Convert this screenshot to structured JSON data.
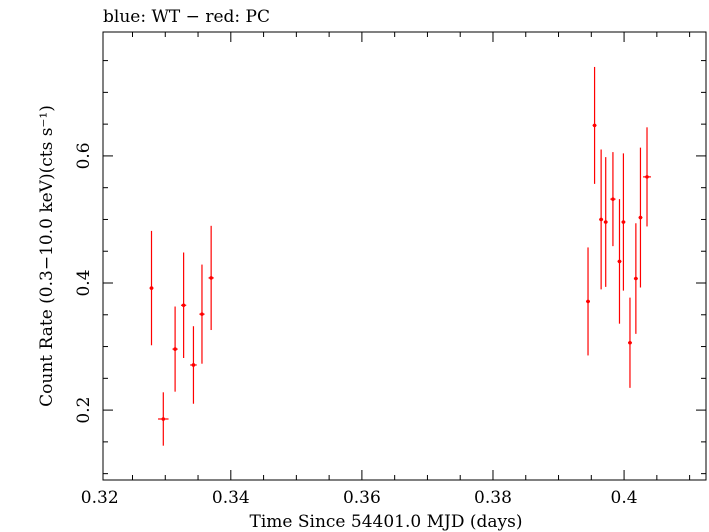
{
  "chart_data": {
    "type": "scatter",
    "title": "blue: WT − red: PC",
    "xlabel": "Time Since 54401.0 MJD (days)",
    "ylabel": "Count Rate (0.3−10.0 keV)(cts s⁻¹)",
    "xlim": [
      0.3205,
      0.4125
    ],
    "ylim": [
      0.09,
      0.795
    ],
    "xticks": [
      0.32,
      0.34,
      0.36,
      0.38,
      0.4
    ],
    "xtick_labels": [
      "0.32",
      "0.34",
      "0.36",
      "0.38",
      "0.4"
    ],
    "yticks": [
      0.2,
      0.4,
      0.6
    ],
    "ytick_labels": [
      "0.2",
      "0.4",
      "0.6"
    ],
    "grid": false,
    "series": [
      {
        "color": "#ff0000",
        "points": [
          {
            "x": 0.3279,
            "xerr": 0.0003,
            "y": 0.392,
            "yerr": 0.09
          },
          {
            "x": 0.3297,
            "xerr": 0.0008,
            "y": 0.186,
            "yerr": 0.042
          },
          {
            "x": 0.3315,
            "xerr": 0.0004,
            "y": 0.296,
            "yerr": 0.067
          },
          {
            "x": 0.3328,
            "xerr": 0.0004,
            "y": 0.365,
            "yerr": 0.083
          },
          {
            "x": 0.3343,
            "xerr": 0.0005,
            "y": 0.271,
            "yerr": 0.061
          },
          {
            "x": 0.3356,
            "xerr": 0.0004,
            "y": 0.351,
            "yerr": 0.078
          },
          {
            "x": 0.337,
            "xerr": 0.0004,
            "y": 0.408,
            "yerr": 0.082
          },
          {
            "x": 0.3945,
            "xerr": 0.0003,
            "y": 0.371,
            "yerr": 0.085
          },
          {
            "x": 0.3955,
            "xerr": 0.0003,
            "y": 0.648,
            "yerr": 0.092
          },
          {
            "x": 0.3965,
            "xerr": 0.0003,
            "y": 0.5,
            "yerr": 0.11
          },
          {
            "x": 0.3972,
            "xerr": 0.0003,
            "y": 0.496,
            "yerr": 0.102
          },
          {
            "x": 0.3983,
            "xerr": 0.0004,
            "y": 0.532,
            "yerr": 0.074
          },
          {
            "x": 0.3993,
            "xerr": 0.0003,
            "y": 0.434,
            "yerr": 0.098
          },
          {
            "x": 0.3999,
            "xerr": 0.0003,
            "y": 0.496,
            "yerr": 0.108
          },
          {
            "x": 0.4009,
            "xerr": 0.0003,
            "y": 0.306,
            "yerr": 0.071
          },
          {
            "x": 0.4018,
            "xerr": 0.0003,
            "y": 0.407,
            "yerr": 0.087
          },
          {
            "x": 0.4025,
            "xerr": 0.0003,
            "y": 0.503,
            "yerr": 0.11
          },
          {
            "x": 0.4035,
            "xerr": 0.0006,
            "y": 0.567,
            "yerr": 0.078
          }
        ]
      }
    ]
  }
}
